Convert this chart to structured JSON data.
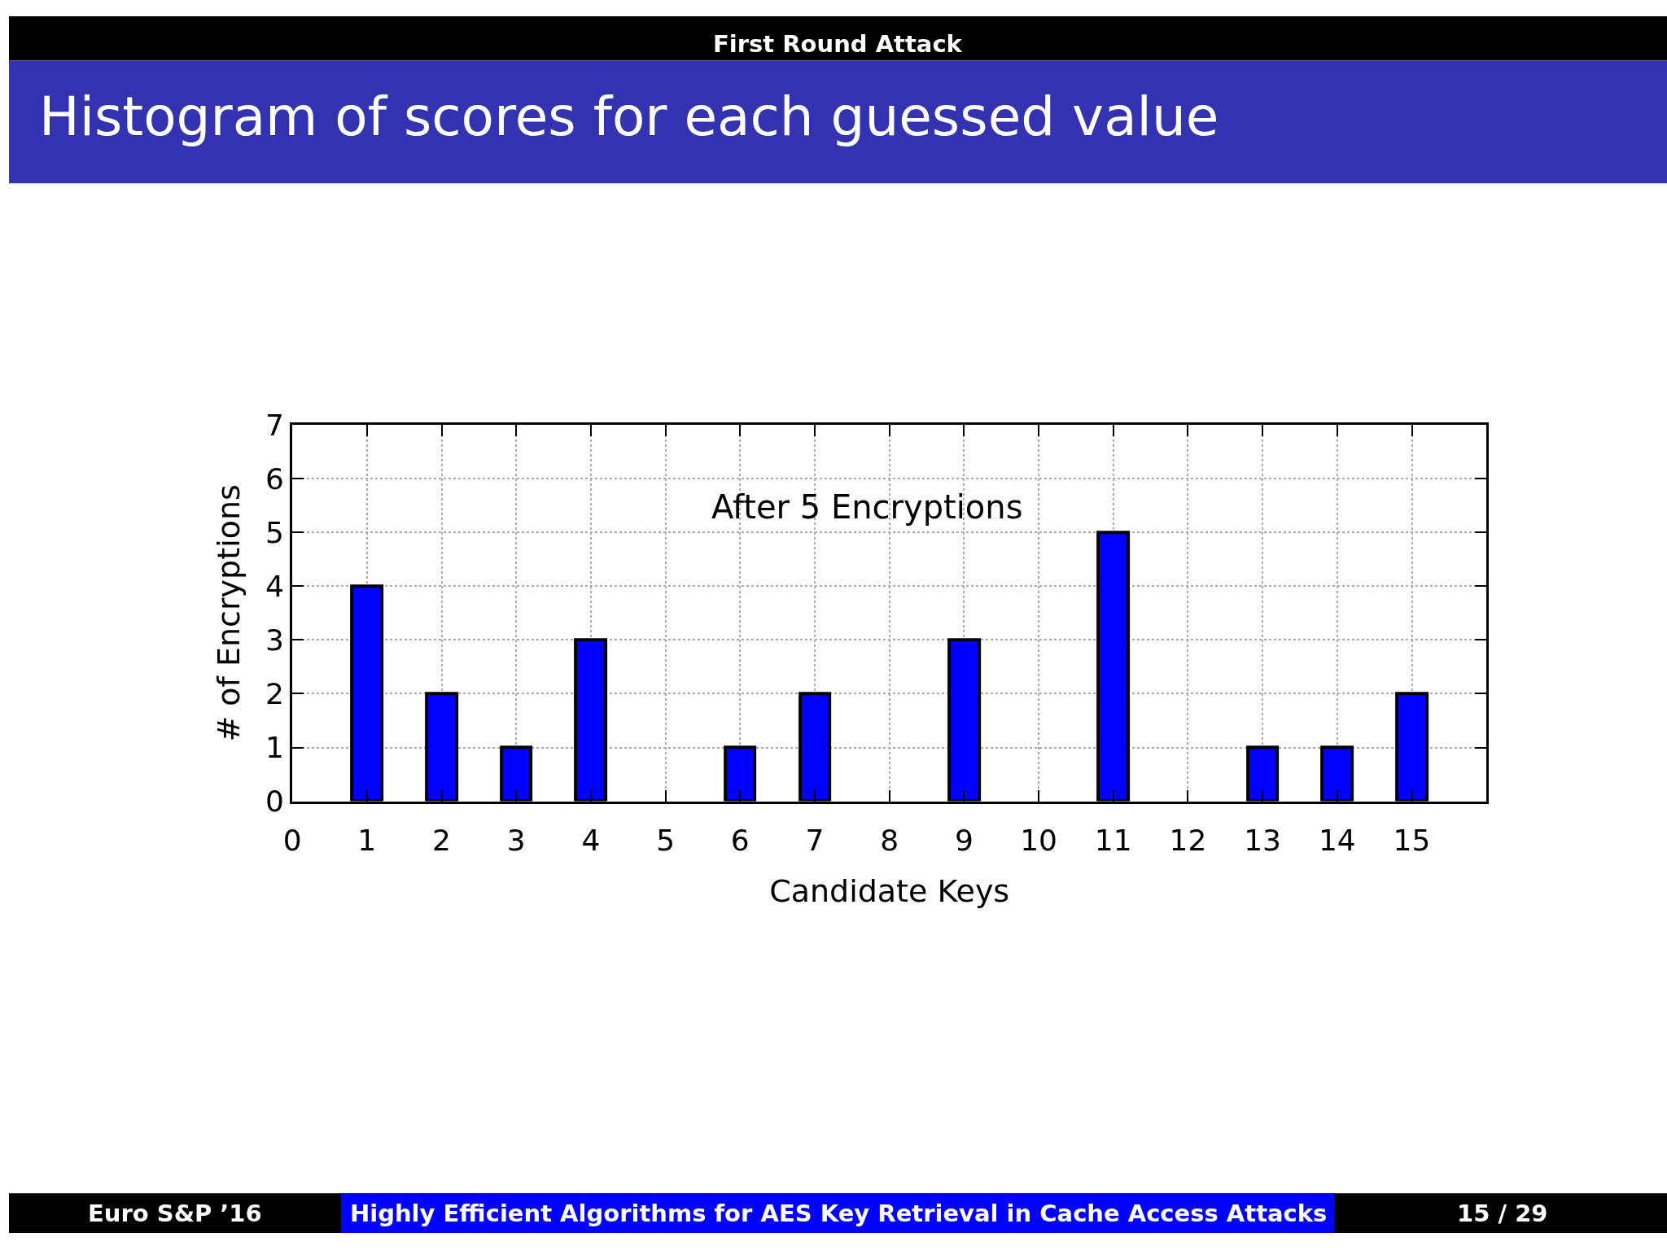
{
  "chart_data": {
    "type": "bar",
    "title": "Histogram of scores for each guessed value",
    "xlabel": "Candidate Keys",
    "ylabel": "# of Encryptions",
    "x": [
      1,
      2,
      3,
      4,
      5,
      6,
      7,
      8,
      9,
      10,
      11,
      12,
      13,
      14,
      15
    ],
    "values": [
      4,
      2,
      1,
      3,
      0,
      1,
      2,
      0,
      3,
      0,
      5,
      0,
      1,
      1,
      2
    ],
    "color": "#0000ff",
    "xlim": [
      0,
      16
    ],
    "xticks": [
      0,
      1,
      2,
      3,
      4,
      5,
      6,
      7,
      8,
      9,
      10,
      11,
      12,
      13,
      14,
      15
    ],
    "ylim": [
      0,
      7
    ],
    "yticks": [
      0,
      1,
      2,
      3,
      4,
      5,
      6,
      7
    ],
    "grid": true,
    "annotations": [
      "After 5 Encryptions",
      "First Round Attack",
      "Euro S&P ’16",
      "Highly Efficient Algorithms for AES Key Retrieval in Cache Access Attacks",
      "15 / 29"
    ]
  }
}
